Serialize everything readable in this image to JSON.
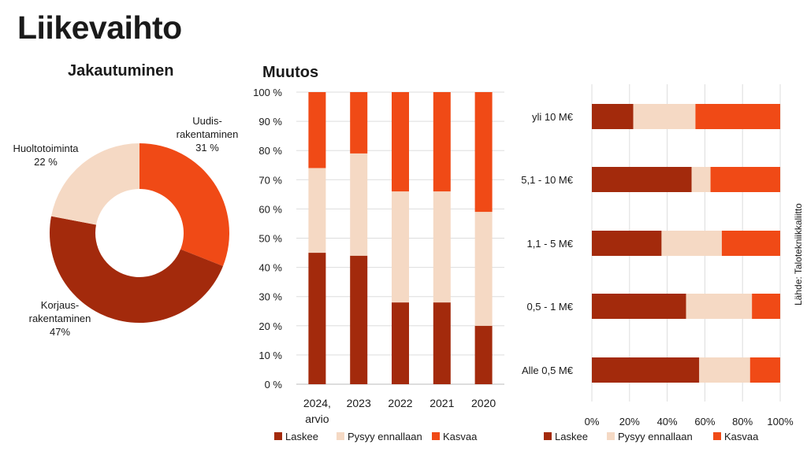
{
  "title": "Liikevaihto",
  "source": "Lähde: Talotekniikkaliitto",
  "colors": {
    "laskee": "#A32A0C",
    "pysyy": "#F5D9C4",
    "kasvaa": "#F04A16",
    "grid": "#DDDDDD"
  },
  "chart_data": [
    {
      "type": "pie",
      "title": "Jakautuminen",
      "slices": [
        {
          "label_lines": [
            "Uudis-",
            "rakentaminen",
            "31 %"
          ],
          "value": 31,
          "color": "#F04A16"
        },
        {
          "label_lines": [
            "Korjaus-",
            "rakentaminen",
            "47%"
          ],
          "value": 47,
          "color": "#A32A0C"
        },
        {
          "label_lines": [
            "Huoltotoiminta",
            "22 %"
          ],
          "value": 22,
          "color": "#F5D9C4"
        }
      ]
    },
    {
      "type": "bar",
      "stacked": true,
      "orientation": "vertical",
      "title": "Muutos",
      "categories": [
        [
          "2024,",
          "arvio"
        ],
        [
          "2023"
        ],
        [
          "2022"
        ],
        [
          "2021"
        ],
        [
          "2020"
        ]
      ],
      "ylim": [
        0,
        100
      ],
      "yticks": [
        0,
        10,
        20,
        30,
        40,
        50,
        60,
        70,
        80,
        90,
        100
      ],
      "ytick_labels": [
        "0 %",
        "10 %",
        "20 %",
        "30 %",
        "40 %",
        "50 %",
        "60 %",
        "70 %",
        "80 %",
        "90 %",
        "100 %"
      ],
      "series": [
        {
          "name": "Laskee",
          "values": [
            45,
            44,
            28,
            28,
            20
          ],
          "color": "#A32A0C"
        },
        {
          "name": "Pysyy ennallaan",
          "values": [
            29,
            35,
            38,
            38,
            39
          ],
          "color": "#F5D9C4"
        },
        {
          "name": "Kasvaa",
          "values": [
            26,
            21,
            34,
            34,
            41
          ],
          "color": "#F04A16"
        }
      ],
      "legend": "bottom",
      "grid": true
    },
    {
      "type": "bar",
      "stacked": true,
      "orientation": "horizontal",
      "categories": [
        "yli 10 M€",
        "5,1 -  10 M€",
        "1,1 -  5 M€",
        "0,5 -  1 M€",
        "Alle 0,5 M€"
      ],
      "xlim": [
        0,
        100
      ],
      "xticks": [
        0,
        20,
        40,
        60,
        80,
        100
      ],
      "xtick_labels": [
        "0%",
        "20%",
        "40%",
        "60%",
        "80%",
        "100%"
      ],
      "series": [
        {
          "name": "Laskee",
          "values": [
            22,
            53,
            37,
            50,
            57
          ],
          "color": "#A32A0C"
        },
        {
          "name": "Pysyy ennallaan",
          "values": [
            33,
            10,
            32,
            35,
            27
          ],
          "color": "#F5D9C4"
        },
        {
          "name": "Kasvaa",
          "values": [
            45,
            37,
            31,
            15,
            16
          ],
          "color": "#F04A16"
        }
      ],
      "legend": "bottom",
      "grid": true
    }
  ]
}
